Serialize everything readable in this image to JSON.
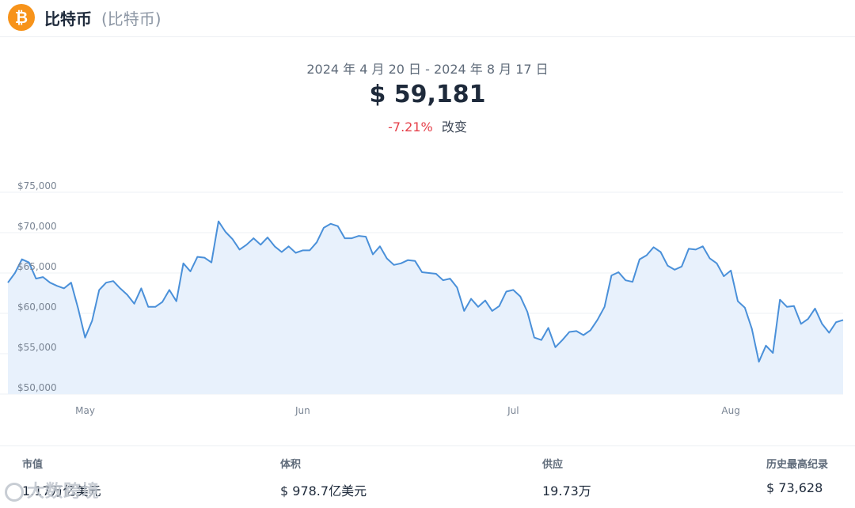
{
  "header": {
    "coin_icon_glyph": "₿",
    "coin_name": "比特币",
    "coin_sub": "(比特币)",
    "icon_color": "#f7931a"
  },
  "summary": {
    "date_range": "2024 年 4 月 20 日 - 2024 年 8 月 17 日",
    "price": "$ 59,181",
    "change_pct": "-7.21%",
    "change_label": "改变"
  },
  "stats": [
    {
      "label": "市值",
      "value": "1.17万亿美元"
    },
    {
      "label": "体积",
      "value": "$ 978.7亿美元"
    },
    {
      "label": "供应",
      "value": "19.73万"
    },
    {
      "label": "历史最高纪录",
      "value": "$ 73,628"
    }
  ],
  "watermark": "大数跨境",
  "chart_data": {
    "type": "area",
    "x_range": [
      "2024-04-20",
      "2024-08-17"
    ],
    "ylim": [
      50000,
      75000
    ],
    "y_ticks": [
      50000,
      55000,
      60000,
      65000,
      70000,
      75000
    ],
    "y_tick_labels": [
      "$50,000",
      "$55,000",
      "$60,000",
      "$65,000",
      "$70,000",
      "$75,000"
    ],
    "x_tick_labels": [
      {
        "date": "2024-05-01",
        "label": "May"
      },
      {
        "date": "2024-06-01",
        "label": "Jun"
      },
      {
        "date": "2024-07-01",
        "label": "Jul"
      },
      {
        "date": "2024-08-01",
        "label": "Aug"
      }
    ],
    "line_color": "#4a90d9",
    "fill_color": "#e8f1fc",
    "grid": true,
    "points": [
      [
        "2024-04-20",
        63800
      ],
      [
        "2024-04-21",
        65000
      ],
      [
        "2024-04-22",
        66700
      ],
      [
        "2024-04-23",
        66300
      ],
      [
        "2024-04-24",
        64300
      ],
      [
        "2024-04-25",
        64500
      ],
      [
        "2024-04-26",
        63800
      ],
      [
        "2024-04-27",
        63400
      ],
      [
        "2024-04-28",
        63100
      ],
      [
        "2024-04-29",
        63800
      ],
      [
        "2024-04-30",
        60600
      ],
      [
        "2024-05-01",
        57000
      ],
      [
        "2024-05-02",
        59100
      ],
      [
        "2024-05-03",
        62900
      ],
      [
        "2024-05-04",
        63800
      ],
      [
        "2024-05-05",
        64000
      ],
      [
        "2024-05-06",
        63100
      ],
      [
        "2024-05-07",
        62300
      ],
      [
        "2024-05-08",
        61200
      ],
      [
        "2024-05-09",
        63100
      ],
      [
        "2024-05-10",
        60800
      ],
      [
        "2024-05-11",
        60800
      ],
      [
        "2024-05-12",
        61400
      ],
      [
        "2024-05-13",
        62900
      ],
      [
        "2024-05-14",
        61500
      ],
      [
        "2024-05-15",
        66200
      ],
      [
        "2024-05-16",
        65200
      ],
      [
        "2024-05-17",
        67000
      ],
      [
        "2024-05-18",
        66900
      ],
      [
        "2024-05-19",
        66300
      ],
      [
        "2024-05-20",
        71400
      ],
      [
        "2024-05-21",
        70100
      ],
      [
        "2024-05-22",
        69200
      ],
      [
        "2024-05-23",
        67900
      ],
      [
        "2024-05-24",
        68500
      ],
      [
        "2024-05-25",
        69300
      ],
      [
        "2024-05-26",
        68500
      ],
      [
        "2024-05-27",
        69400
      ],
      [
        "2024-05-28",
        68300
      ],
      [
        "2024-05-29",
        67600
      ],
      [
        "2024-05-30",
        68300
      ],
      [
        "2024-05-31",
        67500
      ],
      [
        "2024-06-01",
        67800
      ],
      [
        "2024-06-02",
        67800
      ],
      [
        "2024-06-03",
        68800
      ],
      [
        "2024-06-04",
        70600
      ],
      [
        "2024-06-05",
        71100
      ],
      [
        "2024-06-06",
        70800
      ],
      [
        "2024-06-07",
        69300
      ],
      [
        "2024-06-08",
        69300
      ],
      [
        "2024-06-09",
        69600
      ],
      [
        "2024-06-10",
        69500
      ],
      [
        "2024-06-11",
        67300
      ],
      [
        "2024-06-12",
        68300
      ],
      [
        "2024-06-13",
        66800
      ],
      [
        "2024-06-14",
        66000
      ],
      [
        "2024-06-15",
        66200
      ],
      [
        "2024-06-16",
        66600
      ],
      [
        "2024-06-17",
        66500
      ],
      [
        "2024-06-18",
        65100
      ],
      [
        "2024-06-19",
        65000
      ],
      [
        "2024-06-20",
        64900
      ],
      [
        "2024-06-21",
        64100
      ],
      [
        "2024-06-22",
        64300
      ],
      [
        "2024-06-23",
        63200
      ],
      [
        "2024-06-24",
        60300
      ],
      [
        "2024-06-25",
        61800
      ],
      [
        "2024-06-26",
        60800
      ],
      [
        "2024-06-27",
        61600
      ],
      [
        "2024-06-28",
        60300
      ],
      [
        "2024-06-29",
        60900
      ],
      [
        "2024-06-30",
        62700
      ],
      [
        "2024-07-01",
        62900
      ],
      [
        "2024-07-02",
        62100
      ],
      [
        "2024-07-03",
        60200
      ],
      [
        "2024-07-04",
        57000
      ],
      [
        "2024-07-05",
        56700
      ],
      [
        "2024-07-06",
        58200
      ],
      [
        "2024-07-07",
        55800
      ],
      [
        "2024-07-08",
        56700
      ],
      [
        "2024-07-09",
        57700
      ],
      [
        "2024-07-10",
        57800
      ],
      [
        "2024-07-11",
        57300
      ],
      [
        "2024-07-12",
        57900
      ],
      [
        "2024-07-13",
        59200
      ],
      [
        "2024-07-14",
        60800
      ],
      [
        "2024-07-15",
        64700
      ],
      [
        "2024-07-16",
        65100
      ],
      [
        "2024-07-17",
        64100
      ],
      [
        "2024-07-18",
        63900
      ],
      [
        "2024-07-19",
        66700
      ],
      [
        "2024-07-20",
        67200
      ],
      [
        "2024-07-21",
        68200
      ],
      [
        "2024-07-22",
        67600
      ],
      [
        "2024-07-23",
        65900
      ],
      [
        "2024-07-24",
        65400
      ],
      [
        "2024-07-25",
        65800
      ],
      [
        "2024-07-26",
        68000
      ],
      [
        "2024-07-27",
        67900
      ],
      [
        "2024-07-28",
        68300
      ],
      [
        "2024-07-29",
        66800
      ],
      [
        "2024-07-30",
        66200
      ],
      [
        "2024-07-31",
        64600
      ],
      [
        "2024-08-01",
        65300
      ],
      [
        "2024-08-02",
        61500
      ],
      [
        "2024-08-03",
        60700
      ],
      [
        "2024-08-04",
        58100
      ],
      [
        "2024-08-05",
        54000
      ],
      [
        "2024-08-06",
        56000
      ],
      [
        "2024-08-07",
        55100
      ],
      [
        "2024-08-08",
        61700
      ],
      [
        "2024-08-09",
        60800
      ],
      [
        "2024-08-10",
        60900
      ],
      [
        "2024-08-11",
        58700
      ],
      [
        "2024-08-12",
        59300
      ],
      [
        "2024-08-13",
        60600
      ],
      [
        "2024-08-14",
        58700
      ],
      [
        "2024-08-15",
        57600
      ],
      [
        "2024-08-16",
        58900
      ],
      [
        "2024-08-17",
        59181
      ]
    ]
  }
}
